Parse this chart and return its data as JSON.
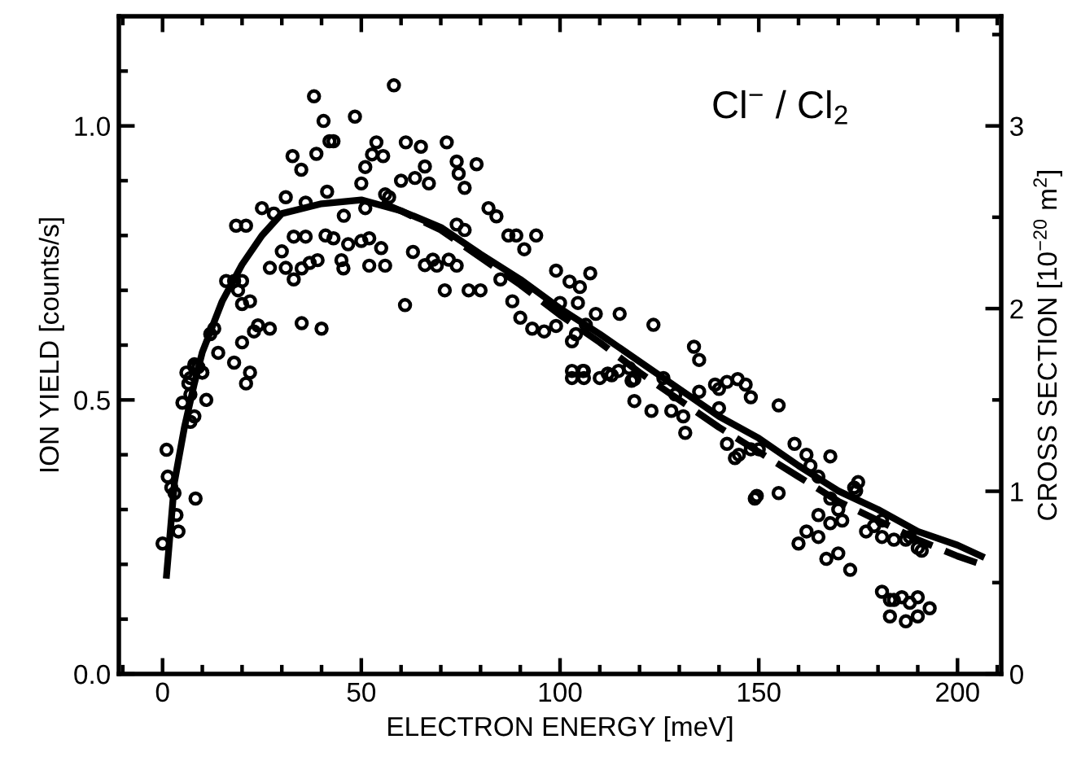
{
  "chart_data": {
    "type": "scatter",
    "xlabel": "ELECTRON ENERGY [meV]",
    "ylabel": "ION YIELD [counts/s]",
    "y2label": "CROSS SECTION [10$^{−20}$ m$^{2}$]",
    "annotations": [
      "Cl$^{−}$ / Cl$_{2}$"
    ],
    "xlim": [
      -11,
      211
    ],
    "ylim": [
      0,
      1.2
    ],
    "y2lim": [
      0,
      3.6
    ],
    "xticks": [
      {
        "value": -10,
        "label": null
      },
      0,
      {
        "value": 10,
        "label": null
      },
      {
        "value": 20,
        "label": null
      },
      {
        "value": 30,
        "label": null
      },
      {
        "value": 40,
        "label": null
      },
      50,
      {
        "value": 60,
        "label": null
      },
      {
        "value": 70,
        "label": null
      },
      {
        "value": 80,
        "label": null
      },
      {
        "value": 90,
        "label": null
      },
      100,
      {
        "value": 110,
        "label": null
      },
      {
        "value": 120,
        "label": null
      },
      {
        "value": 130,
        "label": null
      },
      {
        "value": 140,
        "label": null
      },
      150,
      {
        "value": 160,
        "label": null
      },
      {
        "value": 170,
        "label": null
      },
      {
        "value": 180,
        "label": null
      },
      {
        "value": 190,
        "label": null
      },
      200,
      {
        "value": 210,
        "label": null
      }
    ],
    "yticks": [
      {
        "value": 0,
        "label": "0.0"
      },
      {
        "value": 0.1,
        "label": null
      },
      {
        "value": 0.2,
        "label": null
      },
      {
        "value": 0.3,
        "label": null
      },
      {
        "value": 0.4,
        "label": null
      },
      0.5,
      {
        "value": 0.6,
        "label": null
      },
      {
        "value": 0.7,
        "label": null
      },
      {
        "value": 0.8,
        "label": null
      },
      {
        "value": 0.9,
        "label": null
      },
      {
        "value": 1,
        "label": "1.0"
      },
      {
        "value": 1.1,
        "label": null
      }
    ],
    "y2ticks": [
      0,
      {
        "value": 0.5,
        "label": null
      },
      1,
      {
        "value": 1.5,
        "label": null
      },
      2,
      {
        "value": 2.5,
        "label": null
      },
      3,
      {
        "value": 3.5,
        "label": null
      }
    ],
    "grid": false,
    "legend": false,
    "series": [
      {
        "marker": "circle",
        "color": "#000000",
        "x": [
          58.2,
          38.1,
          40.5,
          48.4,
          42,
          43,
          38.7,
          32.7,
          34.9,
          53.8,
          52.7,
          55.5,
          61.2,
          65,
          71.5,
          74,
          74.5,
          79,
          66,
          60,
          63.5,
          67,
          50,
          51,
          41.4,
          76,
          57,
          56,
          31,
          25,
          28,
          36,
          45.6,
          51,
          18.5,
          21,
          33,
          36,
          41,
          43,
          46.7,
          50,
          52,
          55,
          63,
          66,
          68,
          72,
          74,
          76,
          82,
          84,
          87,
          89,
          91,
          94,
          30,
          27,
          31,
          33,
          35,
          37,
          39,
          45,
          45.5,
          52,
          56,
          69,
          74,
          16,
          18,
          20,
          19,
          22,
          20,
          61,
          71,
          77,
          80,
          85,
          88,
          90,
          93,
          96,
          99,
          104,
          24,
          27,
          23,
          35,
          40,
          13,
          12,
          20,
          14,
          18,
          8,
          10,
          7,
          22,
          21,
          6,
          6.5,
          8,
          9,
          10,
          7,
          5,
          11,
          8,
          7,
          1,
          1.3,
          2.2,
          3,
          3.5,
          4,
          0,
          8.3,
          99,
          102.4,
          105,
          107.6,
          104.5,
          109,
          106.5,
          103,
          115,
          123.5,
          100,
          105.7,
          112,
          114.7,
          117.4,
          118.7,
          133.7,
          135,
          139,
          142,
          144.7,
          146.7,
          103,
          106,
          110,
          113,
          118,
          126,
          129,
          135,
          140,
          148,
          155,
          118.7,
          123,
          128,
          131,
          131.5,
          140,
          144,
          142,
          145,
          148,
          150,
          149,
          149.5,
          155,
          159,
          162,
          160,
          163,
          165,
          162,
          165,
          167,
          168,
          171,
          165,
          168,
          170,
          173,
          175,
          174,
          174.5,
          181,
          183,
          184,
          186,
          188,
          190,
          193,
          183,
          187,
          190,
          181,
          184,
          187,
          188,
          190,
          191,
          177,
          179,
          181,
          168,
          170,
          103,
          106
        ],
        "values": [
          1.074,
          1.054,
          1.009,
          1.017,
          0.972,
          0.972,
          0.949,
          0.945,
          0.92,
          0.97,
          0.948,
          0.945,
          0.97,
          0.962,
          0.97,
          0.935,
          0.913,
          0.93,
          0.926,
          0.9,
          0.905,
          0.895,
          0.895,
          0.925,
          0.88,
          0.887,
          0.87,
          0.875,
          0.87,
          0.85,
          0.84,
          0.86,
          0.836,
          0.85,
          0.818,
          0.818,
          0.798,
          0.798,
          0.8,
          0.795,
          0.784,
          0.79,
          0.795,
          0.777,
          0.77,
          0.746,
          0.756,
          0.756,
          0.82,
          0.81,
          0.85,
          0.835,
          0.8,
          0.8,
          0.775,
          0.8,
          0.771,
          0.741,
          0.741,
          0.72,
          0.74,
          0.75,
          0.755,
          0.755,
          0.74,
          0.745,
          0.745,
          0.745,
          0.745,
          0.717,
          0.717,
          0.717,
          0.7,
          0.68,
          0.675,
          0.673,
          0.7,
          0.7,
          0.7,
          0.72,
          0.68,
          0.65,
          0.63,
          0.625,
          0.635,
          0.62,
          0.636,
          0.63,
          0.625,
          0.64,
          0.63,
          0.63,
          0.62,
          0.605,
          0.586,
          0.568,
          0.56,
          0.55,
          0.54,
          0.55,
          0.53,
          0.55,
          0.53,
          0.565,
          0.56,
          0.55,
          0.51,
          0.495,
          0.5,
          0.47,
          0.46,
          0.409,
          0.36,
          0.34,
          0.33,
          0.29,
          0.26,
          0.238,
          0.32,
          0.736,
          0.716,
          0.706,
          0.731,
          0.677,
          0.657,
          0.637,
          0.607,
          0.657,
          0.637,
          0.677,
          0.553,
          0.548,
          0.553,
          0.558,
          0.538,
          0.597,
          0.573,
          0.528,
          0.533,
          0.538,
          0.528,
          0.54,
          0.54,
          0.54,
          0.545,
          0.535,
          0.54,
          0.51,
          0.515,
          0.52,
          0.505,
          0.49,
          0.498,
          0.48,
          0.48,
          0.47,
          0.44,
          0.485,
          0.394,
          0.42,
          0.4,
          0.41,
          0.41,
          0.32,
          0.325,
          0.33,
          0.42,
          0.4,
          0.238,
          0.38,
          0.36,
          0.26,
          0.25,
          0.21,
          0.397,
          0.28,
          0.29,
          0.275,
          0.22,
          0.19,
          0.35,
          0.34,
          0.334,
          0.15,
          0.135,
          0.135,
          0.14,
          0.13,
          0.14,
          0.12,
          0.105,
          0.096,
          0.105,
          0.25,
          0.245,
          0.245,
          0.25,
          0.23,
          0.225,
          0.26,
          0.27,
          0.28,
          0.32,
          0.3,
          0.553,
          0.553
        ]
      },
      {
        "type": "line",
        "line_style": "solid",
        "color": "#000000",
        "x": [
          1,
          3,
          5.5,
          8,
          10,
          15,
          20,
          25,
          30,
          40,
          50,
          60,
          70,
          80,
          90,
          100,
          110,
          120,
          130,
          140,
          150,
          160,
          170,
          180,
          190,
          200,
          206
        ],
        "values": [
          0.18,
          0.35,
          0.45,
          0.53,
          0.587,
          0.68,
          0.747,
          0.8,
          0.84,
          0.858,
          0.865,
          0.845,
          0.815,
          0.766,
          0.72,
          0.667,
          0.62,
          0.57,
          0.52,
          0.47,
          0.43,
          0.38,
          0.334,
          0.3,
          0.26,
          0.235,
          0.215
        ]
      },
      {
        "type": "line",
        "line_style": "dashed",
        "color": "#000000",
        "x": [
          55,
          60,
          70,
          80,
          90,
          100,
          110,
          120,
          130,
          140,
          150,
          160,
          170,
          180,
          190,
          200,
          206
        ],
        "values": [
          0.86,
          0.845,
          0.81,
          0.76,
          0.71,
          0.655,
          0.605,
          0.55,
          0.5,
          0.45,
          0.405,
          0.36,
          0.315,
          0.28,
          0.245,
          0.215,
          0.2
        ]
      }
    ]
  }
}
